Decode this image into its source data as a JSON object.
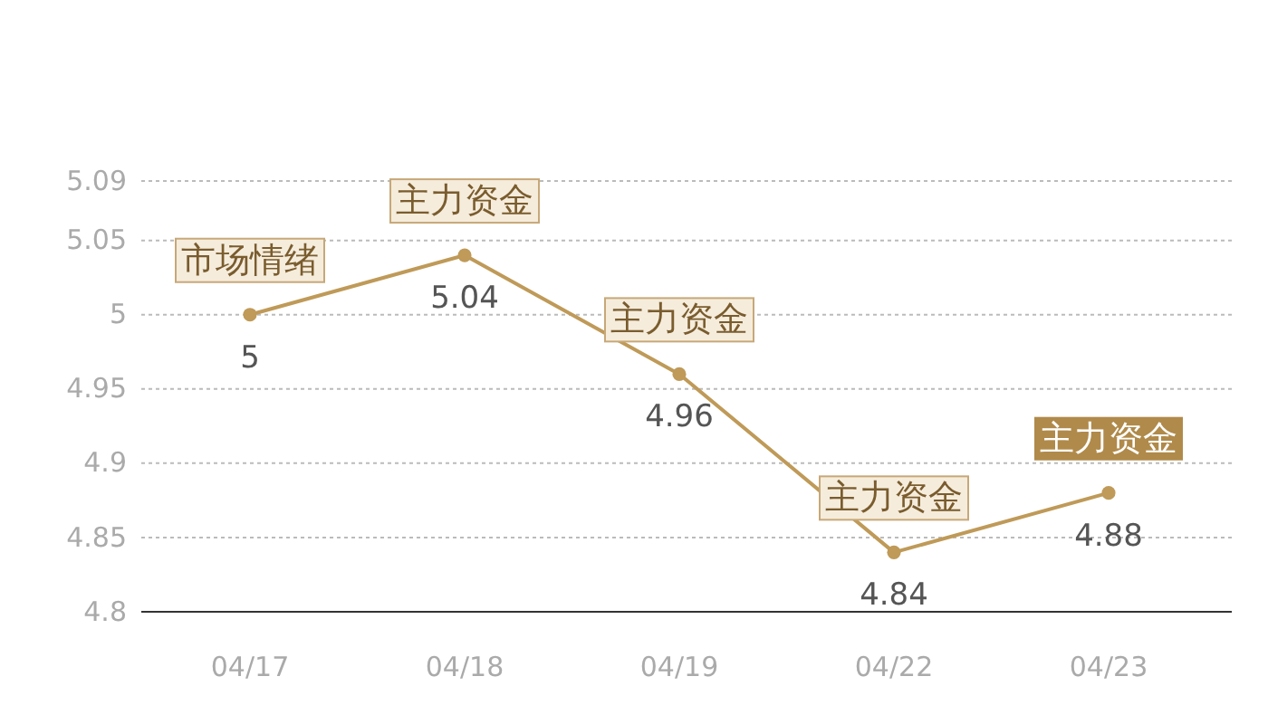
{
  "chart_data": {
    "type": "line",
    "categories": [
      "04/17",
      "04/18",
      "04/19",
      "04/22",
      "04/23"
    ],
    "series": [
      {
        "color": "#bf9a58",
        "values": [
          5,
          5.04,
          4.96,
          4.84,
          4.88
        ]
      }
    ],
    "ylim": [
      4.8,
      5.09
    ],
    "yticks": [
      4.8,
      4.85,
      4.9,
      4.95,
      5,
      5.05,
      5.09
    ],
    "grid": "y",
    "marker": "circle",
    "data_labels": true,
    "annotations": [
      {
        "text": "市场情绪",
        "x": "04/17",
        "y": 5
      },
      {
        "text": "主力资金",
        "x": "04/18",
        "y": 5.04
      },
      {
        "text": "主力资金",
        "x": "04/19",
        "y": 4.96
      },
      {
        "text": "主力资金",
        "x": "04/22",
        "y": 4.84
      },
      {
        "text": "主力资金",
        "x": "04/23",
        "y": 4.88
      }
    ]
  }
}
